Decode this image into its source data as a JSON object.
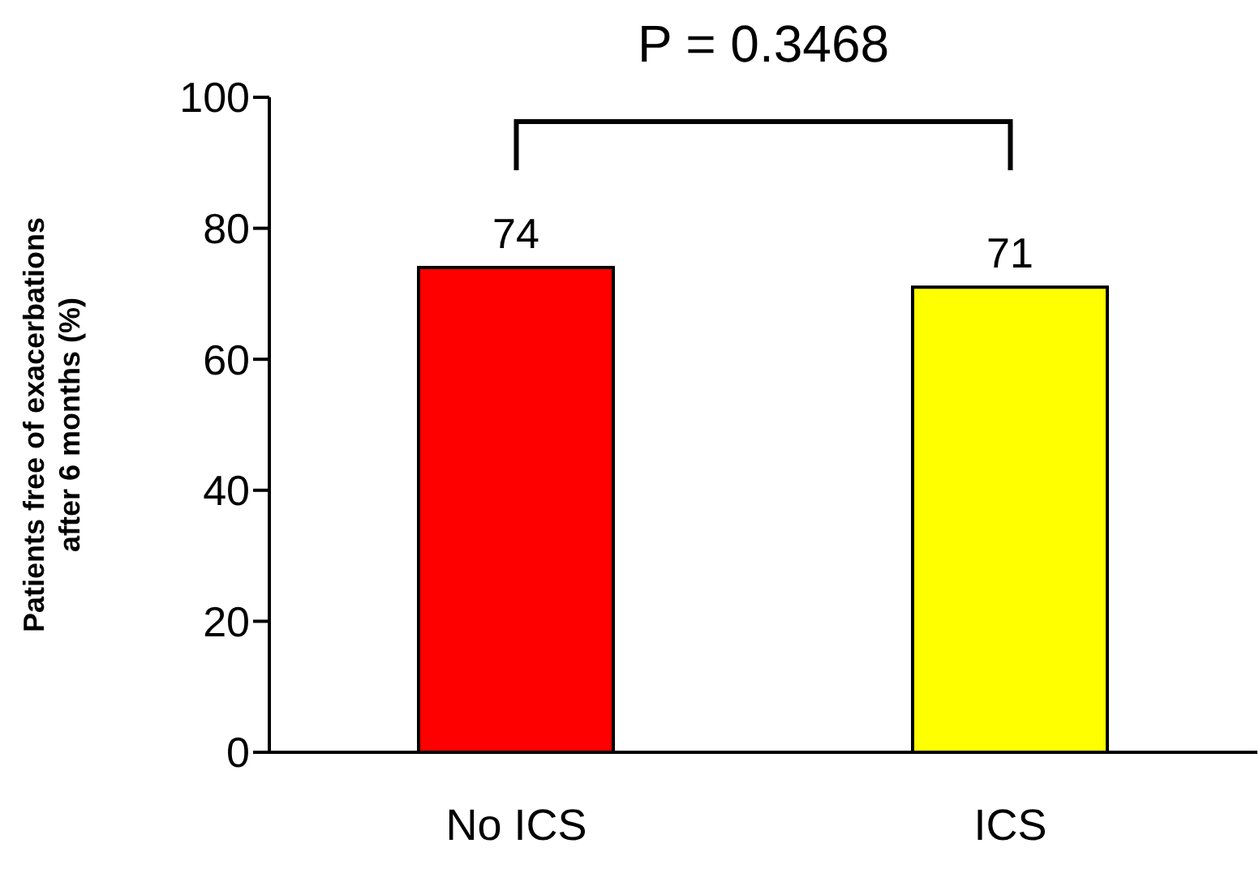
{
  "chart_data": {
    "type": "bar",
    "ylabel": "Patients free of exacerbations after 6 months (%)",
    "categories": [
      "No ICS",
      "ICS"
    ],
    "values": [
      74,
      71
    ],
    "colors": [
      "#ff0000",
      "#ffff00"
    ],
    "ylim": [
      0,
      100
    ],
    "yticks": [
      0,
      20,
      40,
      60,
      80,
      100
    ],
    "data_labels": true,
    "annotations": [
      "P = 0.3468"
    ]
  }
}
